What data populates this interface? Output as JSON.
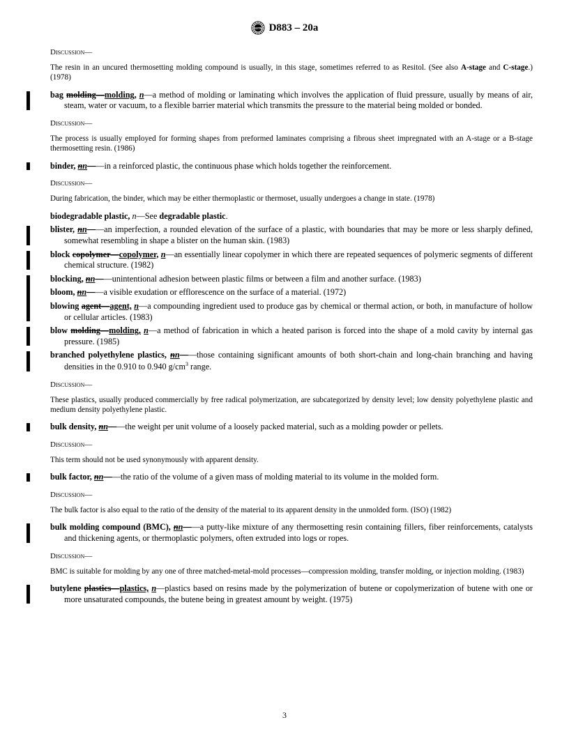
{
  "header": {
    "designation": "D883 – 20a",
    "page_number": "3"
  },
  "blocks": [
    {
      "type": "discussion_label",
      "text": "Discussion—",
      "bar": false
    },
    {
      "type": "discussion_body",
      "text": "The resin in an uncured thermosetting molding compound is usually, in this stage, sometimes referred to as Resitol. (See also ",
      "tail_bold1": "A-stage",
      "tail_mid": " and ",
      "tail_bold2": "C-stage",
      "tail_end": ".) (1978)",
      "bar": false
    },
    {
      "type": "entry",
      "bar": true,
      "term_pre": "bag ",
      "term_strike": "molding—",
      "term_post": "molding,",
      "pos": "n",
      "dash": "—",
      "def": "a method of molding or laminating which involves the application of fluid pressure, usually by means of air, steam, water or vacuum, to a flexible barrier material which transmits the pressure to the material being molded or bonded."
    },
    {
      "type": "discussion_label",
      "text": "Discussion—",
      "bar": false
    },
    {
      "type": "discussion_body",
      "text": "The process is usually employed for forming shapes from preformed laminates comprising a fibrous sheet impregnated with an A-stage or a B-stage thermosetting resin. (1986)",
      "bar": false
    },
    {
      "type": "entry",
      "bar": true,
      "term_pre": "binder, ",
      "term_strike": "",
      "term_post": "",
      "pos_strike": "n",
      "pos": "n",
      "dash": "—",
      "strike_dash": true,
      "def": "in a reinforced plastic, the continuous phase which holds together the reinforcement."
    },
    {
      "type": "discussion_label",
      "text": "Discussion—",
      "bar": false
    },
    {
      "type": "discussion_body",
      "text": "During fabrication, the binder, which may be either thermoplastic or thermoset, usually undergoes a change in state. (1978)",
      "bar": false
    },
    {
      "type": "entry",
      "bar": false,
      "term_pre": "biodegradable plastic, ",
      "pos_plain_italic": "n",
      "dash": "—",
      "def": "See ",
      "def_bold": "degradable plastic",
      "def_tail": "."
    },
    {
      "type": "entry",
      "bar": true,
      "term_pre": "blister, ",
      "pos_strike": "n",
      "pos": "n",
      "strike_dash": true,
      "dash": "—",
      "def": "an imperfection, a rounded elevation of the surface of a plastic, with boundaries that may be more or less sharply defined, somewhat resembling in shape a blister on the human skin. (1983)"
    },
    {
      "type": "entry",
      "bar": true,
      "term_pre": "block ",
      "term_strike": "copolymer—",
      "term_post": "copolymer,",
      "pos": "n",
      "dash": "—",
      "def": "an essentially linear copolymer in which there are repeated sequences of polymeric segments of different chemical structure. (1982)"
    },
    {
      "type": "group_start"
    },
    {
      "type": "entry",
      "bar": false,
      "term_pre": "blocking, ",
      "pos_strike": "n",
      "pos": "n",
      "strike_dash": true,
      "dash": "—",
      "def": "unintentional adhesion between plastic films or between a film and another surface. (1983)"
    },
    {
      "type": "entry",
      "bar": false,
      "term_pre": "bloom, ",
      "pos_strike": "n",
      "pos": "n",
      "strike_dash": true,
      "dash": "—",
      "def": "a visible exudation or efflorescence on the surface of a material. (1972)"
    },
    {
      "type": "entry",
      "bar": false,
      "term_pre": "blowing ",
      "term_strike": "agent—",
      "term_post": "agent,",
      "pos": "n",
      "dash": "—",
      "def": "a compounding ingredient used to produce gas by chemical or thermal action, or both, in manufacture of hollow or cellular articles. (1983)"
    },
    {
      "type": "group_end"
    },
    {
      "type": "entry",
      "bar": true,
      "term_pre": "blow ",
      "term_strike": "molding—",
      "term_post": "molding,",
      "pos": "n",
      "dash": "—",
      "def": "a method of fabrication in which a heated parison is forced into the shape of a mold cavity by internal gas pressure. (1985)"
    },
    {
      "type": "entry",
      "bar": true,
      "term_pre": "branched polyethylene plastics, ",
      "pos_strike": "n",
      "pos": "n",
      "strike_dash": true,
      "dash": "—",
      "def": "those containing significant amounts of both short-chain and long-chain branching and having densities in the 0.910 to 0.940 g/cm",
      "sup": "3",
      "def_tail2": " range."
    },
    {
      "type": "discussion_label",
      "text": "Discussion—",
      "bar": false
    },
    {
      "type": "discussion_body",
      "text": "These plastics, usually produced commercially by free radical polymerization, are subcategorized by density level; low density polyethylene plastic and medium density polyethylene plastic.",
      "bar": false
    },
    {
      "type": "entry",
      "bar": true,
      "term_pre": "bulk density, ",
      "pos_strike": "n",
      "pos": "n",
      "strike_dash": true,
      "dash": "—",
      "def": "the weight per unit volume of a loosely packed material, such as a molding powder or pellets."
    },
    {
      "type": "discussion_label",
      "text": "Discussion—",
      "bar": false
    },
    {
      "type": "discussion_body",
      "text": "This term should not be used synonymously with apparent density.",
      "bar": false
    },
    {
      "type": "entry",
      "bar": true,
      "term_pre": "bulk factor, ",
      "pos_strike": "n",
      "pos": "n",
      "strike_dash": true,
      "dash": "—",
      "def": "the ratio of the volume of a given mass of molding material to its volume in the molded form."
    },
    {
      "type": "discussion_label",
      "text": "Discussion—",
      "bar": false
    },
    {
      "type": "discussion_body",
      "text": "The bulk factor is also equal to the ratio of the density of the material to its apparent density in the unmolded form. (ISO) (1982)",
      "bar": false
    },
    {
      "type": "entry",
      "bar": true,
      "term_pre": "bulk molding compound (BMC), ",
      "pos_strike": "n",
      "pos": "n",
      "strike_dash": true,
      "dash": "—",
      "def": "a putty-like mixture of any thermosetting resin containing fillers, fiber reinforcements, catalysts and thickening agents, or thermoplastic polymers, often extruded into logs or ropes."
    },
    {
      "type": "discussion_label",
      "text": "Discussion—",
      "bar": false
    },
    {
      "type": "discussion_body",
      "text": "BMC is suitable for molding by any one of three matched-metal-mold processes—compression molding, transfer molding, or injection molding. (1983)",
      "bar": false
    },
    {
      "type": "entry",
      "bar": true,
      "term_pre": "butylene ",
      "term_strike": "plastics—",
      "term_post": "plastics,",
      "pos": "n",
      "dash": "—",
      "def": "plastics based on resins made by the polymerization of butene or copolymerization of butene with one or more unsaturated compounds, the butene being in greatest amount by weight. (1975)"
    }
  ],
  "style": {
    "background": "#ffffff",
    "text_color": "#000000",
    "body_fontsize": 12.2,
    "discussion_fontsize": 11.2,
    "bar_width": 4.5,
    "font_family": "Times New Roman"
  }
}
